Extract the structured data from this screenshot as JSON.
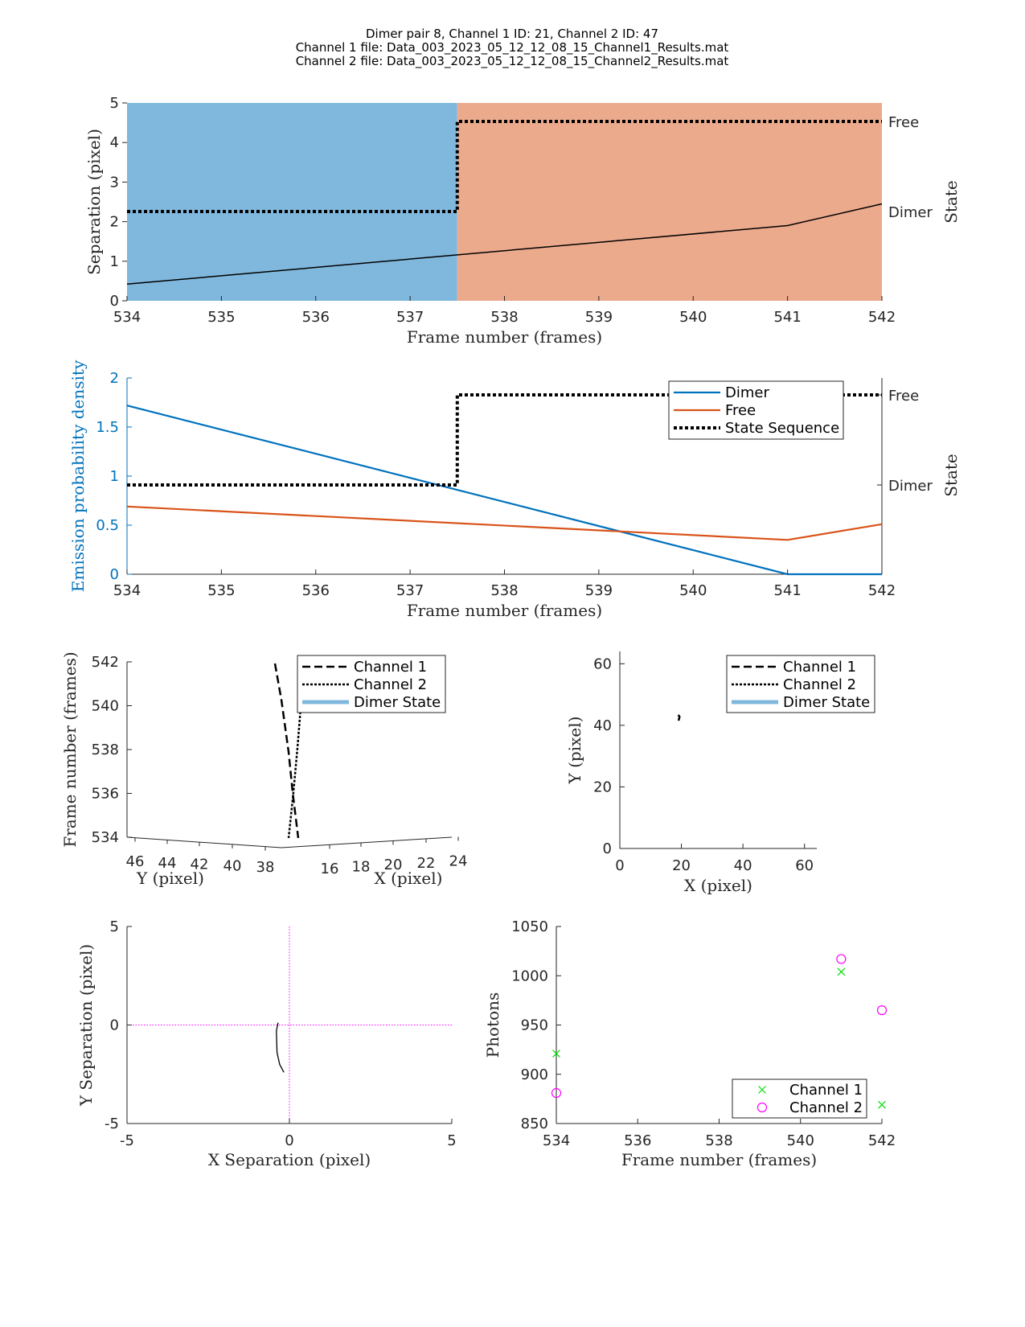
{
  "title_lines": [
    "Dimer pair 8, Channel 1 ID: 21, Channel 2 ID: 47",
    "Channel 1 file: Data_003_2023_05_12_12_08_15_Channel1_Results.mat",
    "Channel 2 file: Data_003_2023_05_12_12_08_15_Channel2_Results.mat"
  ],
  "colors": {
    "dimer_blue": "#80b8dd",
    "free_salmon": "#ecaa8d",
    "blue_line": "#0072bd",
    "orange_line": "#d95319",
    "green": "#00e000",
    "magenta": "#ff00ff"
  },
  "chart_data": [
    {
      "type": "line",
      "xlabel": "Frame number (frames)",
      "ylabel": "Separation (pixel)",
      "y2label": "State",
      "xlim": [
        534,
        542
      ],
      "ylim": [
        0,
        5
      ],
      "xticks": [
        534,
        535,
        536,
        537,
        538,
        539,
        540,
        541,
        542
      ],
      "yticks": [
        0,
        1,
        2,
        3,
        4,
        5
      ],
      "state_ticks": [
        "Dimer",
        "Free"
      ],
      "shading": [
        {
          "state": "Dimer",
          "x": [
            534,
            537.5
          ]
        },
        {
          "state": "Free",
          "x": [
            537.5,
            542
          ]
        }
      ],
      "separation": {
        "x": [
          534,
          541,
          542
        ],
        "y": [
          0.42,
          1.9,
          2.45
        ]
      },
      "state_sequence": {
        "x": [
          534,
          537.5,
          537.5,
          542
        ],
        "state": [
          "Dimer",
          "Dimer",
          "Free",
          "Free"
        ]
      }
    },
    {
      "type": "line",
      "xlabel": "Frame number (frames)",
      "ylabel": "Emission probability density",
      "y2label": "State",
      "xlim": [
        534,
        542
      ],
      "ylim": [
        0,
        2
      ],
      "xticks": [
        534,
        535,
        536,
        537,
        538,
        539,
        540,
        541,
        542
      ],
      "yticks": [
        "0",
        "0.5",
        "1",
        "1.5",
        "2"
      ],
      "state_ticks": [
        "Dimer",
        "Free"
      ],
      "legend": [
        "Dimer",
        "Free",
        "State Sequence"
      ],
      "legend_position": "top-right",
      "series": [
        {
          "name": "Dimer",
          "x": [
            534,
            541,
            542
          ],
          "y": [
            1.72,
            0.0,
            0.0
          ]
        },
        {
          "name": "Free",
          "x": [
            534,
            541,
            542
          ],
          "y": [
            0.69,
            0.35,
            0.51
          ]
        }
      ],
      "state_sequence": {
        "x": [
          534,
          537.5,
          537.5,
          542
        ],
        "state": [
          "Dimer",
          "Dimer",
          "Free",
          "Free"
        ]
      }
    },
    {
      "type": "line3d",
      "xlabel": "X (pixel)",
      "ylabel": "Y (pixel)",
      "zlabel": "Frame number (frames)",
      "zticks": [
        534,
        536,
        538,
        540,
        542
      ],
      "yticks": [
        46,
        44,
        42,
        40,
        38
      ],
      "xticks": [
        16,
        18,
        20,
        22,
        24
      ],
      "legend": [
        "Channel 1",
        "Channel 2",
        "Dimer State"
      ],
      "legend_position": "top-right"
    },
    {
      "type": "line",
      "xlabel": "X (pixel)",
      "ylabel": "Y (pixel)",
      "xlim": [
        0,
        64
      ],
      "ylim": [
        0,
        64
      ],
      "xticks": [
        0,
        20,
        40,
        60
      ],
      "yticks": [
        0,
        20,
        40,
        60
      ],
      "legend": [
        "Channel 1",
        "Channel 2",
        "Dimer State"
      ],
      "legend_position": "top-right",
      "trace": {
        "x": [
          19.1,
          19.4,
          19.0
        ],
        "y": [
          41.5,
          42.8,
          43.4
        ]
      }
    },
    {
      "type": "line",
      "xlabel": "X Separation (pixel)",
      "ylabel": "Y Separation (pixel)",
      "xlim": [
        -5,
        5
      ],
      "ylim": [
        -5,
        5
      ],
      "xticks": [
        "-5",
        "0",
        "5"
      ],
      "yticks": [
        "-5",
        "0",
        "5"
      ],
      "trace": {
        "x": [
          -0.35,
          -0.4,
          -0.38,
          -0.3,
          -0.17
        ],
        "y": [
          0.12,
          -0.3,
          -1.4,
          -2.0,
          -2.4
        ]
      }
    },
    {
      "type": "scatter",
      "xlabel": "Frame number (frames)",
      "ylabel": "Photons",
      "xlim": [
        534,
        542
      ],
      "ylim": [
        850,
        1050
      ],
      "xticks": [
        534,
        536,
        538,
        540,
        542
      ],
      "yticks": [
        850,
        900,
        950,
        1000,
        1050
      ],
      "legend_position": "bottom-right",
      "series": [
        {
          "name": "Channel 1",
          "marker": "x",
          "x": [
            534,
            541,
            542
          ],
          "y": [
            921,
            1004,
            869
          ]
        },
        {
          "name": "Channel 2",
          "marker": "o",
          "x": [
            534,
            541,
            542
          ],
          "y": [
            881,
            1017,
            965
          ]
        }
      ]
    }
  ]
}
